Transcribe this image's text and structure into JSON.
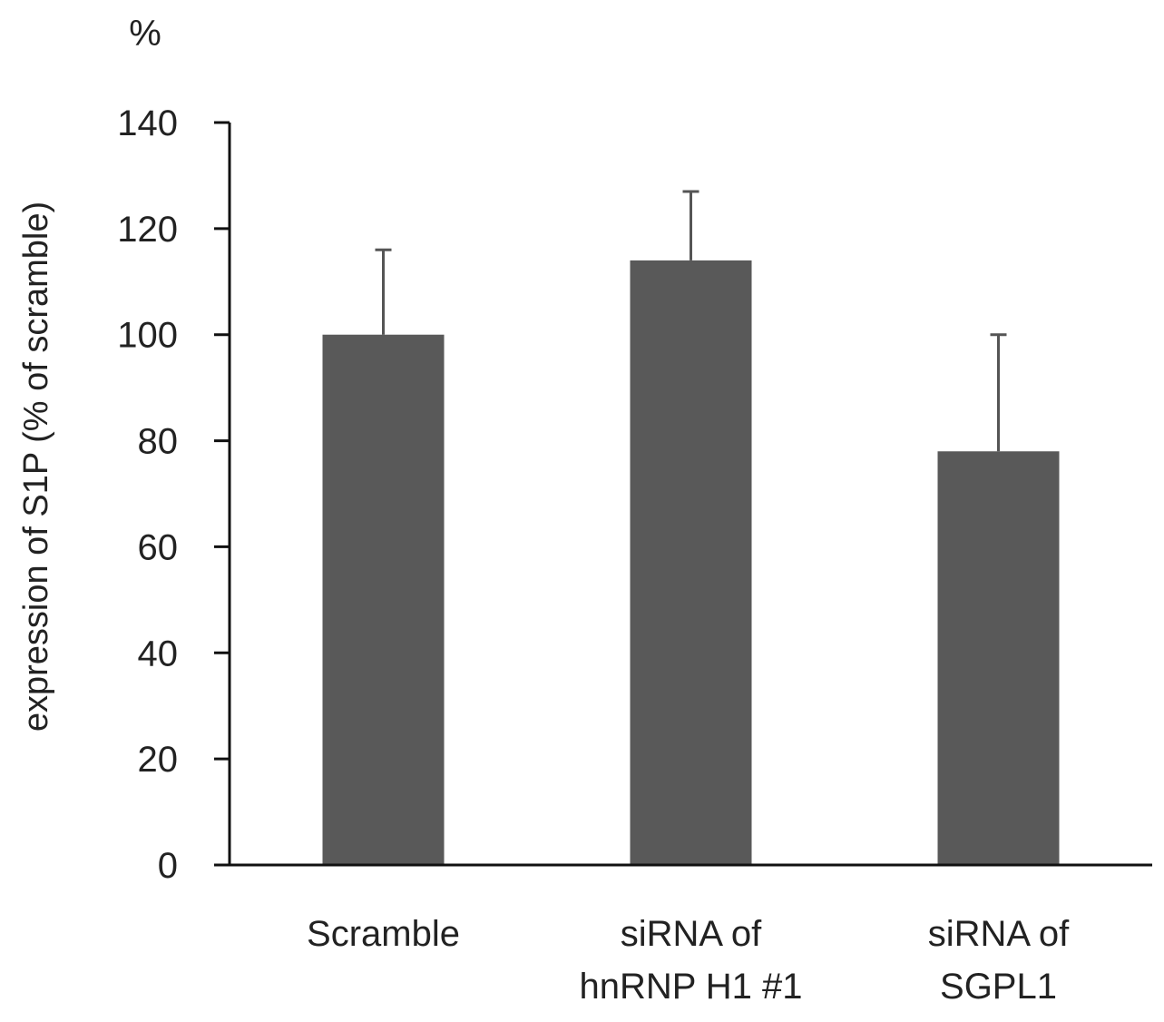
{
  "chart_data": {
    "type": "bar",
    "title": "",
    "unit_label": "%",
    "ylabel": "expression of S1P (% of scramble)",
    "xlabel": "",
    "categories": [
      [
        "Scramble"
      ],
      [
        "siRNA of",
        "hnRNP H1 #1"
      ],
      [
        "siRNA of",
        "SGPL1"
      ]
    ],
    "series": [
      {
        "values": [
          100,
          114,
          78
        ],
        "error_upper": [
          16,
          13,
          22
        ]
      }
    ],
    "ylim": [
      0,
      140
    ],
    "yticks": [
      0,
      20,
      40,
      60,
      80,
      100,
      120,
      140
    ],
    "grid": false,
    "legend": "none",
    "bar_color": "#595959",
    "error_color": "#555555",
    "axis_color": "#111111"
  }
}
